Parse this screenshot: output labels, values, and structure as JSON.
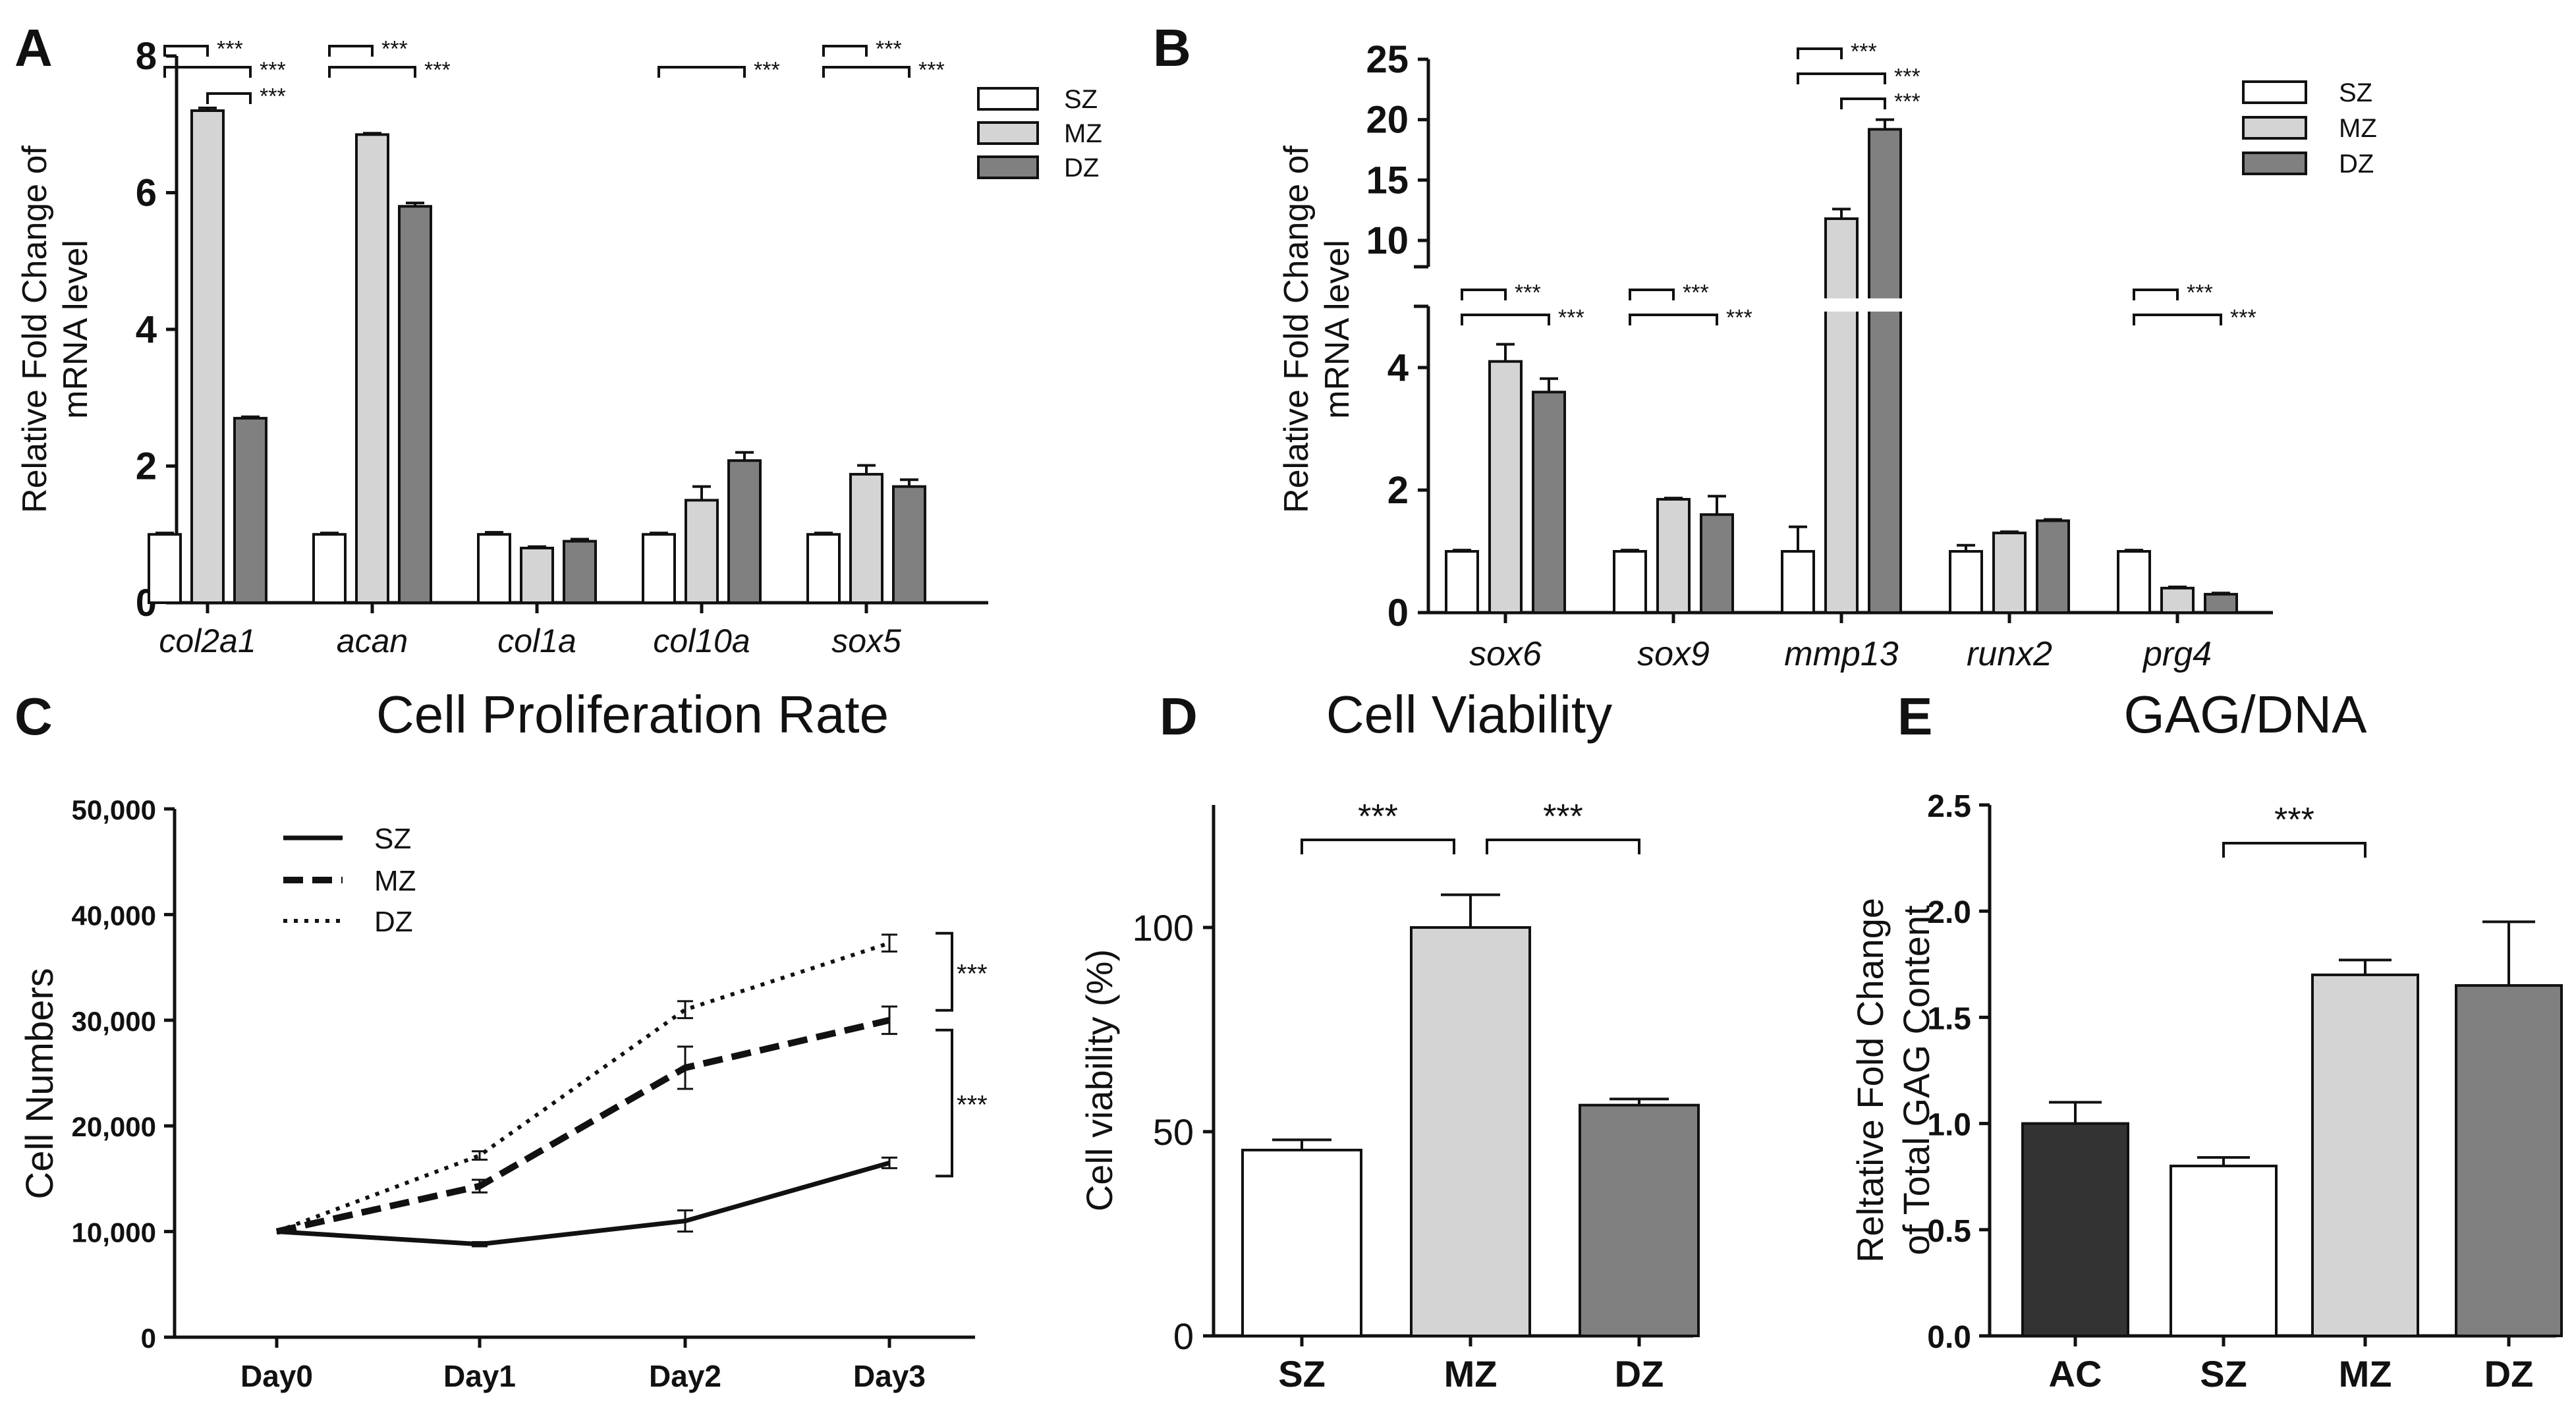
{
  "colors": {
    "SZ": "#ffffff",
    "MZ": "#d4d4d4",
    "DZ": "#808080",
    "AC": "#333333",
    "axis": "#111111"
  },
  "chart_data": [
    {
      "panel": "A",
      "type": "bar",
      "title": "",
      "ylabel": [
        "Relative Fold Change of",
        "mRNA level"
      ],
      "ylim": [
        0,
        8
      ],
      "yticks": [
        "0",
        "2",
        "4",
        "6",
        "8"
      ],
      "categories": [
        "col2a1",
        "acan",
        "col1a",
        "col10a",
        "sox5"
      ],
      "series": [
        {
          "name": "SZ",
          "values": [
            1.0,
            1.0,
            1.0,
            1.0,
            1.0
          ],
          "errors": [
            0.02,
            0.02,
            0.03,
            0.02,
            0.02
          ]
        },
        {
          "name": "MZ",
          "values": [
            7.2,
            6.85,
            0.8,
            1.5,
            1.88
          ],
          "errors": [
            0.04,
            0.02,
            0.02,
            0.2,
            0.13
          ]
        },
        {
          "name": "DZ",
          "values": [
            2.7,
            5.8,
            0.9,
            2.08,
            1.7
          ],
          "errors": [
            0.02,
            0.05,
            0.03,
            0.12,
            0.1
          ]
        }
      ],
      "significance": [
        {
          "group": 0,
          "from": 0,
          "to": 1,
          "level": 0,
          "label": "***"
        },
        {
          "group": 0,
          "from": 0,
          "to": 2,
          "level": 1,
          "label": "***"
        },
        {
          "group": 0,
          "from": 1,
          "to": 2,
          "level": 2,
          "label": "***"
        },
        {
          "group": 1,
          "from": 0,
          "to": 1,
          "level": 0,
          "label": "***"
        },
        {
          "group": 1,
          "from": 0,
          "to": 2,
          "level": 1,
          "label": "***"
        },
        {
          "group": 3,
          "from": 0,
          "to": 2,
          "level": 1,
          "label": "***"
        },
        {
          "group": 4,
          "from": 0,
          "to": 1,
          "level": 0,
          "label": "***"
        },
        {
          "group": 4,
          "from": 0,
          "to": 2,
          "level": 1,
          "label": "***"
        }
      ],
      "legend": [
        "SZ",
        "MZ",
        "DZ"
      ]
    },
    {
      "panel": "B",
      "type": "bar",
      "title": "",
      "ylabel": [
        "Relative Fold Change of",
        "mRNA level"
      ],
      "ylim_lower": [
        0,
        5
      ],
      "ylim_upper": [
        10,
        25
      ],
      "yticks": [
        "0",
        "2",
        "4",
        "10",
        "15",
        "20",
        "25"
      ],
      "categories": [
        "sox6",
        "sox9",
        "mmp13",
        "runx2",
        "prg4"
      ],
      "series": [
        {
          "name": "SZ",
          "values": [
            1.0,
            1.0,
            1.0,
            1.0,
            1.0
          ],
          "errors": [
            0.02,
            0.02,
            0.4,
            0.1,
            0.02
          ]
        },
        {
          "name": "MZ",
          "values": [
            4.1,
            1.85,
            11.8,
            1.3,
            0.4
          ],
          "errors": [
            0.28,
            0.02,
            0.8,
            0.02,
            0.02
          ]
        },
        {
          "name": "DZ",
          "values": [
            3.6,
            1.6,
            19.2,
            1.5,
            0.3
          ],
          "errors": [
            0.22,
            0.3,
            0.8,
            0.02,
            0.02
          ]
        }
      ],
      "significance": [
        {
          "group": 0,
          "from": 0,
          "to": 1,
          "level": 0,
          "label": "***"
        },
        {
          "group": 0,
          "from": 0,
          "to": 2,
          "level": 1,
          "label": "***"
        },
        {
          "group": 1,
          "from": 0,
          "to": 1,
          "level": 0,
          "label": "***"
        },
        {
          "group": 1,
          "from": 0,
          "to": 2,
          "level": 1,
          "label": "***"
        },
        {
          "group": 2,
          "from": 0,
          "to": 1,
          "level": 0,
          "label": "***"
        },
        {
          "group": 2,
          "from": 0,
          "to": 2,
          "level": 1,
          "label": "***"
        },
        {
          "group": 2,
          "from": 1,
          "to": 2,
          "level": 2,
          "label": "***"
        },
        {
          "group": 4,
          "from": 0,
          "to": 1,
          "level": 0,
          "label": "***"
        },
        {
          "group": 4,
          "from": 0,
          "to": 2,
          "level": 1,
          "label": "***"
        }
      ],
      "legend": [
        "SZ",
        "MZ",
        "DZ"
      ]
    },
    {
      "panel": "C",
      "type": "line",
      "title": "Cell Proliferation Rate",
      "xlabel": "",
      "ylabel": "Cell Numbers",
      "ylim": [
        0,
        50000
      ],
      "yticks": [
        "0",
        "10,000",
        "20,000",
        "30,000",
        "40,000",
        "50,000"
      ],
      "x": [
        "Day0",
        "Day1",
        "Day2",
        "Day3"
      ],
      "series": [
        {
          "name": "SZ",
          "style": "solid",
          "values": [
            10000,
            8800,
            11000,
            16500
          ],
          "errors": [
            0,
            200,
            1000,
            500
          ]
        },
        {
          "name": "MZ",
          "style": "dashed",
          "values": [
            10000,
            14300,
            25500,
            30000
          ],
          "errors": [
            0,
            600,
            2000,
            1300
          ]
        },
        {
          "name": "DZ",
          "style": "dotted",
          "values": [
            10000,
            17200,
            31000,
            37300
          ],
          "errors": [
            0,
            400,
            800,
            800
          ]
        }
      ],
      "significance": [
        {
          "from": 37300,
          "to": 30000,
          "label": "***"
        },
        {
          "from": 30000,
          "to": 16500,
          "label": "***"
        }
      ],
      "legend": [
        "SZ",
        "MZ",
        "DZ"
      ]
    },
    {
      "panel": "D",
      "type": "bar",
      "title": "Cell Viability",
      "xlabel": "",
      "ylabel": "Cell viability (%)",
      "ylim": [
        0,
        130
      ],
      "yticks": [
        "0",
        "50",
        "100"
      ],
      "categories": [
        "SZ",
        "MZ",
        "DZ"
      ],
      "values": [
        45.5,
        100,
        56.5
      ],
      "errors": [
        2.5,
        8,
        1.5
      ],
      "significance": [
        {
          "from": 0,
          "to": 1,
          "label": "***"
        },
        {
          "from": 1,
          "to": 2,
          "label": "***"
        }
      ]
    },
    {
      "panel": "E",
      "type": "bar",
      "title": "GAG/DNA",
      "xlabel": "",
      "ylabel": [
        "Reltative Fold Change",
        "of Total GAG Content"
      ],
      "ylim": [
        0,
        2.5
      ],
      "yticks": [
        "0.0",
        "0.5",
        "1.0",
        "1.5",
        "2.0",
        "2.5"
      ],
      "categories": [
        "AC",
        "SZ",
        "MZ",
        "DZ"
      ],
      "values": [
        1.0,
        0.8,
        1.7,
        1.65
      ],
      "errors": [
        0.1,
        0.04,
        0.07,
        0.3
      ],
      "significance": [
        {
          "from": 1,
          "to": 2,
          "label": "***"
        }
      ]
    }
  ]
}
